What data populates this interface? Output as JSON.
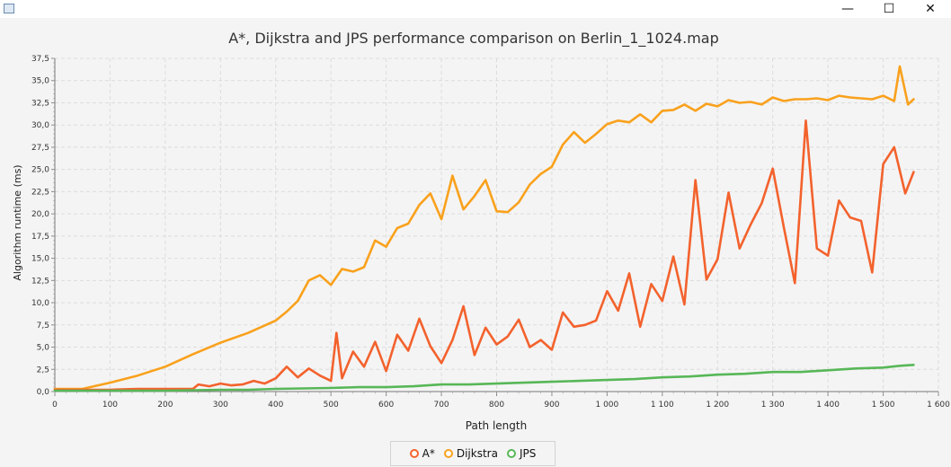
{
  "window": {
    "minimize_glyph": "—",
    "maximize_glyph": "☐",
    "close_glyph": "✕"
  },
  "chart_data": {
    "type": "line",
    "title": "A*, Dijkstra and JPS performance comparison on Berlin_1_1024.map",
    "xlabel": "Path length",
    "ylabel": "Algorithm runtime (ms)",
    "xlim": [
      0,
      1600
    ],
    "ylim": [
      0,
      37.5
    ],
    "xticks": [
      0,
      100,
      200,
      300,
      400,
      500,
      600,
      700,
      800,
      900,
      1000,
      1100,
      1200,
      1300,
      1400,
      1500,
      1600
    ],
    "xtick_labels": [
      "0",
      "100",
      "200",
      "300",
      "400",
      "500",
      "600",
      "700",
      "800",
      "900",
      "1 000",
      "1 100",
      "1 200",
      "1 300",
      "1 400",
      "1 500",
      "1 600"
    ],
    "yticks": [
      0,
      2.5,
      5,
      7.5,
      10,
      12.5,
      15,
      17.5,
      20,
      22.5,
      25,
      27.5,
      30,
      32.5,
      35,
      37.5
    ],
    "ytick_labels": [
      "0,0",
      "2,5",
      "5,0",
      "7,5",
      "10,0",
      "12,5",
      "15,0",
      "17,5",
      "20,0",
      "22,5",
      "25,0",
      "27,5",
      "30,0",
      "32,5",
      "35,0",
      "37,5"
    ],
    "grid": true,
    "legend_position": "bottom",
    "series": [
      {
        "name": "A*",
        "color": "#f3622d",
        "x": [
          0,
          50,
          100,
          150,
          200,
          250,
          260,
          280,
          300,
          320,
          340,
          360,
          380,
          400,
          420,
          440,
          460,
          480,
          500,
          510,
          520,
          540,
          560,
          580,
          600,
          620,
          640,
          660,
          680,
          700,
          720,
          740,
          760,
          780,
          800,
          820,
          840,
          860,
          880,
          900,
          920,
          940,
          960,
          980,
          1000,
          1020,
          1040,
          1060,
          1080,
          1100,
          1120,
          1140,
          1160,
          1180,
          1200,
          1220,
          1240,
          1260,
          1280,
          1300,
          1320,
          1340,
          1360,
          1380,
          1400,
          1420,
          1440,
          1460,
          1480,
          1500,
          1520,
          1540,
          1555
        ],
        "y": [
          0.2,
          0.2,
          0.2,
          0.3,
          0.3,
          0.3,
          0.8,
          0.6,
          0.9,
          0.7,
          0.8,
          1.2,
          0.9,
          1.5,
          2.8,
          1.6,
          2.6,
          1.8,
          1.2,
          6.6,
          1.5,
          4.5,
          2.8,
          5.6,
          2.3,
          6.4,
          4.6,
          8.2,
          5.1,
          3.2,
          5.8,
          9.6,
          4.1,
          7.2,
          5.3,
          6.2,
          8.1,
          5.0,
          5.8,
          4.7,
          8.9,
          7.3,
          7.5,
          8.0,
          11.3,
          9.1,
          13.3,
          7.3,
          12.1,
          10.2,
          15.2,
          9.8,
          23.8,
          12.6,
          14.9,
          22.4,
          16.1,
          18.8,
          21.2,
          25.1,
          18.5,
          12.2,
          30.5,
          16.1,
          15.3,
          21.5,
          19.6,
          19.2,
          13.4,
          25.6,
          27.5,
          22.3,
          24.7
        ]
      },
      {
        "name": "Dijkstra",
        "color": "#f9a11c",
        "x": [
          0,
          50,
          100,
          150,
          200,
          250,
          300,
          350,
          400,
          420,
          440,
          460,
          480,
          500,
          520,
          540,
          560,
          580,
          600,
          620,
          640,
          660,
          680,
          700,
          720,
          740,
          760,
          780,
          800,
          820,
          840,
          860,
          880,
          900,
          920,
          940,
          960,
          980,
          1000,
          1020,
          1040,
          1060,
          1080,
          1100,
          1120,
          1140,
          1160,
          1180,
          1200,
          1220,
          1240,
          1260,
          1280,
          1300,
          1320,
          1340,
          1360,
          1380,
          1400,
          1420,
          1440,
          1460,
          1480,
          1500,
          1520,
          1530,
          1545,
          1555
        ],
        "y": [
          0.3,
          0.3,
          1.0,
          1.8,
          2.8,
          4.2,
          5.5,
          6.6,
          8.0,
          9.0,
          10.2,
          12.5,
          13.1,
          12.0,
          13.8,
          13.5,
          14.0,
          17.0,
          16.3,
          18.4,
          18.9,
          21.0,
          22.3,
          19.4,
          24.3,
          20.5,
          22.0,
          23.8,
          20.3,
          20.2,
          21.3,
          23.3,
          24.5,
          25.3,
          27.8,
          29.2,
          28.0,
          29.0,
          30.1,
          30.5,
          30.3,
          31.2,
          30.3,
          31.6,
          31.7,
          32.3,
          31.6,
          32.4,
          32.1,
          32.8,
          32.5,
          32.6,
          32.3,
          33.1,
          32.7,
          32.9,
          32.9,
          33.0,
          32.8,
          33.3,
          33.1,
          33.0,
          32.9,
          33.3,
          32.7,
          36.6,
          32.3,
          32.9
        ]
      },
      {
        "name": "JPS",
        "color": "#57b757",
        "x": [
          0,
          50,
          100,
          150,
          200,
          250,
          300,
          350,
          400,
          450,
          500,
          550,
          600,
          650,
          700,
          750,
          800,
          850,
          900,
          950,
          1000,
          1050,
          1100,
          1150,
          1200,
          1250,
          1300,
          1350,
          1400,
          1450,
          1500,
          1530,
          1555
        ],
        "y": [
          0.1,
          0.1,
          0.1,
          0.1,
          0.1,
          0.15,
          0.2,
          0.2,
          0.3,
          0.35,
          0.4,
          0.5,
          0.5,
          0.6,
          0.8,
          0.8,
          0.9,
          1.0,
          1.1,
          1.2,
          1.3,
          1.4,
          1.6,
          1.7,
          1.9,
          2.0,
          2.2,
          2.2,
          2.4,
          2.6,
          2.7,
          2.9,
          3.0
        ]
      }
    ]
  }
}
